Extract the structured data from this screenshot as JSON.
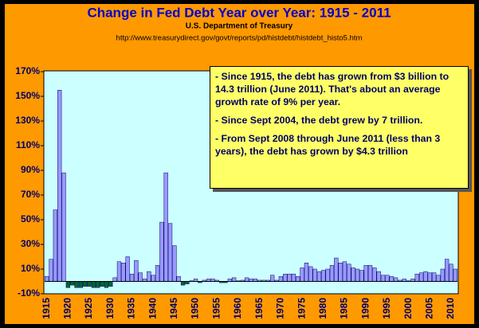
{
  "chart_data": {
    "type": "bar",
    "title": "Change in Fed Debt Year over Year: 1915 - 2011",
    "subtitle": "U.S. Department of Treasury",
    "source": "http://www.treasurydirect.gov/govt/reports/pd/histdebt/histdebt_histo5.htm",
    "annotations": [
      "- Since 1915, the debt has grown from $3 billion to 14.3 trillion (June 2011).  That's about an average growth rate of 9% per year.",
      "- Since Sept 2004, the debt grew by 7 trillion.",
      "- From Sept 2008 through June 2011 (less than 3 years), the debt has grown by $4.3 trillion"
    ],
    "categories": [
      "1915",
      null,
      null,
      null,
      null,
      "1920",
      null,
      null,
      null,
      null,
      "1925",
      null,
      null,
      null,
      null,
      "1930",
      null,
      null,
      null,
      null,
      "1935",
      null,
      null,
      null,
      null,
      "1940",
      null,
      null,
      null,
      null,
      "1945",
      null,
      null,
      null,
      null,
      "1950",
      null,
      null,
      null,
      null,
      "1955",
      null,
      null,
      null,
      null,
      "1960",
      null,
      null,
      null,
      null,
      "1965",
      null,
      null,
      null,
      null,
      "1970",
      null,
      null,
      null,
      null,
      "1975",
      null,
      null,
      null,
      null,
      "1980",
      null,
      null,
      null,
      null,
      "1985",
      null,
      null,
      null,
      null,
      "1990",
      null,
      null,
      null,
      null,
      "1995",
      null,
      null,
      null,
      null,
      "2000",
      null,
      null,
      null,
      null,
      "2005",
      null,
      null,
      null,
      null,
      "2010",
      null
    ],
    "values": [
      4,
      18,
      58,
      155,
      88,
      -5,
      -3,
      -5,
      -5,
      -4,
      -4,
      -5,
      -5,
      -4,
      -5,
      -4,
      3,
      16,
      15,
      20,
      6,
      17,
      7,
      2,
      8,
      5,
      13,
      48,
      88,
      47,
      29,
      4,
      -3,
      -2,
      0.5,
      2,
      -1,
      1,
      2,
      2,
      1,
      -1,
      -1,
      2,
      3,
      0.5,
      1,
      3,
      2,
      2,
      1,
      1,
      1,
      5,
      1,
      4,
      6,
      6,
      6,
      4,
      11,
      15,
      12,
      10,
      8,
      9,
      10,
      13,
      19,
      15,
      16,
      14,
      11,
      10,
      9,
      13,
      13,
      11,
      8,
      5,
      5,
      4,
      3,
      1,
      2,
      0.5,
      2,
      6,
      7,
      8,
      7,
      7,
      5,
      10,
      18,
      14,
      10
    ],
    "color": "#9999ff",
    "negative_color": "#006633",
    "ylim": [
      -10,
      170
    ],
    "yticks": [
      {
        "value": -10,
        "label": "-10%"
      },
      {
        "value": 10,
        "label": "10%"
      },
      {
        "value": 30,
        "label": "30%"
      },
      {
        "value": 50,
        "label": "50%"
      },
      {
        "value": 70,
        "label": "70%"
      },
      {
        "value": 90,
        "label": "90%"
      },
      {
        "value": 110,
        "label": "110%"
      },
      {
        "value": 130,
        "label": "130%"
      },
      {
        "value": 150,
        "label": "150%"
      },
      {
        "value": 170,
        "label": "170%"
      }
    ],
    "grid": false
  }
}
